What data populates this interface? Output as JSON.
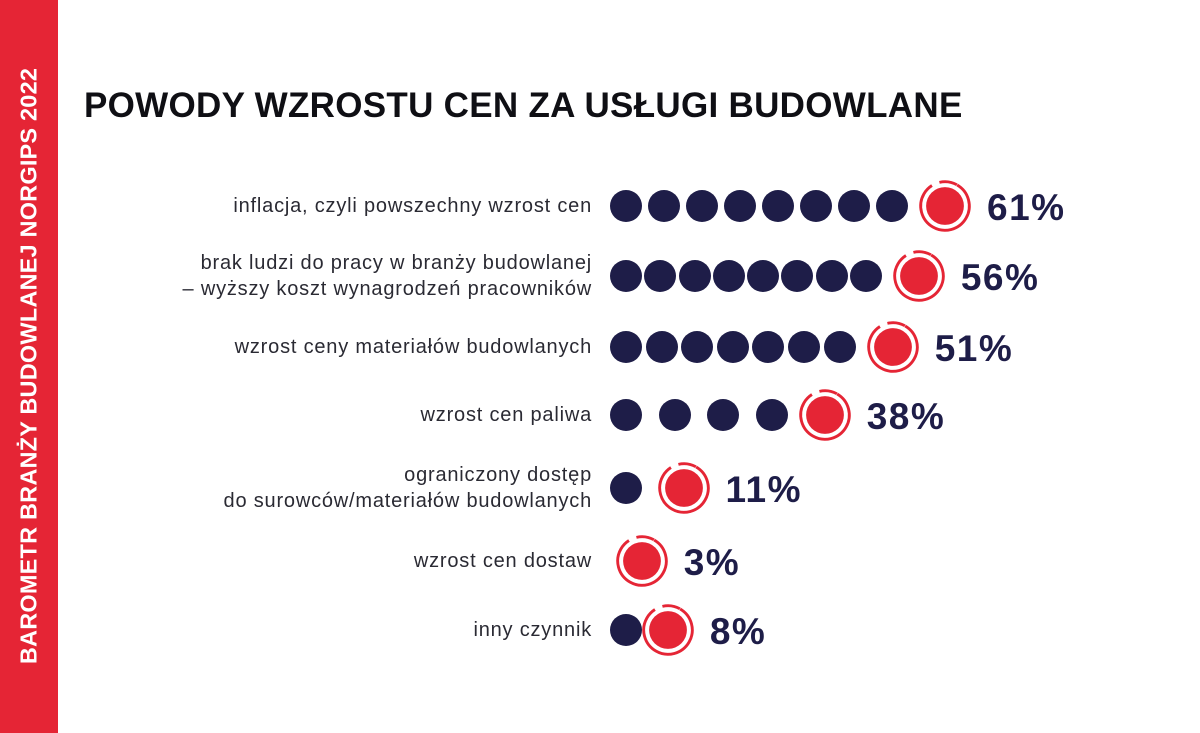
{
  "sidebar": {
    "text": "BAROMETR BRANŻY BUDOWLANEJ NORGIPS 2022"
  },
  "colors": {
    "accent": "#e52535",
    "dot": "#1e1d48",
    "text": "#2a2a33"
  },
  "chart_data": {
    "type": "bar",
    "title": "POWODY WZROSTU CEN ZA USŁUGI BUDOWLANE",
    "categories": [
      [
        "inflacja, czyli powszechny wzrost cen"
      ],
      [
        "brak ludzi do pracy w branży budowlanej",
        "– wyższy koszt wynagrodzeń pracowników"
      ],
      [
        "wzrost ceny materiałów budowlanych"
      ],
      [
        "wzrost cen paliwa"
      ],
      [
        "ograniczony dostęp",
        "do surowców/materiałów budowlanych"
      ],
      [
        "wzrost cen dostaw"
      ],
      [
        "inny czynnik"
      ]
    ],
    "values": [
      61,
      56,
      51,
      38,
      11,
      3,
      8
    ],
    "value_labels": [
      "61%",
      "56%",
      "51%",
      "38%",
      "11%",
      "3%",
      "8%"
    ],
    "unit": "%"
  }
}
